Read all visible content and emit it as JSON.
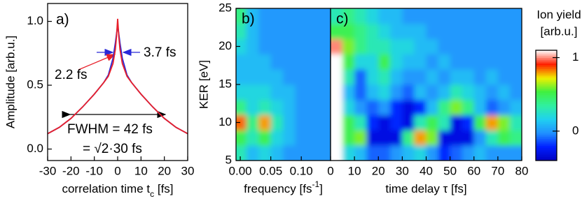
{
  "chart_data": [
    {
      "type": "line",
      "label": "a)",
      "ylabel": "Amplitude [arb.u.]",
      "xlabel": [
        "correlation time t",
        "c",
        " [fs]"
      ],
      "xlim": [
        -30,
        30
      ],
      "ylim": [
        -0.09,
        1.14
      ],
      "xticks": [
        -30,
        -20,
        -10,
        0,
        10,
        20,
        30
      ],
      "yticks": [
        {
          "value": 0,
          "label": "0.0"
        },
        0.5,
        {
          "value": 1,
          "label": "1.0"
        }
      ],
      "x": [
        -30,
        -25,
        -20,
        -15,
        -10,
        -6,
        -4,
        -2,
        -1,
        -0.5,
        0,
        0.5,
        1,
        2,
        4,
        6,
        10,
        15,
        20,
        25,
        30
      ],
      "series": [
        {
          "name": "3.7 fs",
          "color": "#2828d8",
          "values": [
            0.12,
            0.17,
            0.24,
            0.33,
            0.43,
            0.52,
            0.58,
            0.71,
            0.83,
            0.9,
            0.97,
            0.9,
            0.83,
            0.71,
            0.58,
            0.52,
            0.43,
            0.33,
            0.24,
            0.17,
            0.12
          ]
        },
        {
          "name": "2.2 fs",
          "color": "#e8202a",
          "values": [
            0.12,
            0.17,
            0.24,
            0.33,
            0.43,
            0.52,
            0.57,
            0.67,
            0.78,
            0.88,
            1.02,
            0.88,
            0.78,
            0.67,
            0.57,
            0.52,
            0.43,
            0.33,
            0.24,
            0.17,
            0.12
          ]
        }
      ],
      "annotations": [
        "FWHM = 42 fs",
        "= √2·30 fs"
      ]
    },
    {
      "type": "heatmap",
      "label": "b)",
      "ylabel": "KER [eV]",
      "xlabel": [
        "frequency [fs",
        "-1",
        "]"
      ],
      "xlim": [
        -0.007,
        0.148
      ],
      "ylim": [
        5,
        25
      ],
      "xticks": [
        {
          "value": 0,
          "label": "0.00"
        },
        {
          "value": 0.05,
          "label": "0.05"
        },
        {
          "value": 0.1,
          "label": "0.10"
        }
      ],
      "yticks": [
        5,
        10,
        15,
        20,
        25
      ],
      "x": [
        0,
        0.02,
        0.04,
        0.06,
        0.08,
        0.1,
        0.12,
        0.14
      ],
      "y": [
        6,
        8,
        10,
        12,
        14,
        16,
        18,
        20,
        22,
        24
      ],
      "z": [
        [
          0.3,
          0.1,
          0.2,
          0.1,
          0,
          0,
          0,
          0
        ],
        [
          0.5,
          0.3,
          0.5,
          0.2,
          0.1,
          0,
          0,
          0
        ],
        [
          0.85,
          0.4,
          0.8,
          0.3,
          0.1,
          0,
          0,
          0
        ],
        [
          0.4,
          0.2,
          0.3,
          0.2,
          0.1,
          0,
          0,
          0
        ],
        [
          0.2,
          0.2,
          0.2,
          0.1,
          0.1,
          0,
          0,
          0
        ],
        [
          0.1,
          0.1,
          0.1,
          0.1,
          0,
          0,
          0,
          0
        ],
        [
          0.1,
          0.1,
          0.1,
          0,
          0,
          0,
          0,
          0
        ],
        [
          0.2,
          0.1,
          0,
          0,
          0,
          0,
          0,
          0
        ],
        [
          0.3,
          0.1,
          0,
          0,
          0,
          0,
          0,
          0
        ],
        [
          0.4,
          0.1,
          0,
          0,
          0,
          0,
          0,
          0
        ]
      ]
    },
    {
      "type": "heatmap",
      "label": "c)",
      "xlabel": [
        "time delay τ [fs]"
      ],
      "xlim": [
        0,
        80
      ],
      "ylim": [
        5,
        25
      ],
      "xticks": [
        0,
        10,
        20,
        30,
        40,
        50,
        60,
        70,
        80
      ],
      "x": [
        2.5,
        7.5,
        12.5,
        17.5,
        22.5,
        27.5,
        32.5,
        37.5,
        42.5,
        47.5,
        52.5,
        57.5,
        62.5,
        67.5,
        72.5,
        77.5
      ],
      "y": [
        6,
        8,
        10,
        12,
        14,
        16,
        18,
        20,
        22,
        24
      ],
      "z": [
        [
          1.1,
          0.2,
          0.1,
          -0.1,
          -0.1,
          0,
          0.1,
          0.2,
          0,
          -0.2,
          -0.1,
          0,
          0.1,
          0,
          0,
          0
        ],
        [
          1.1,
          0.5,
          0.6,
          -0.3,
          -0.3,
          -0.3,
          0.4,
          0.8,
          0.6,
          -0.3,
          -0.3,
          -0.3,
          0,
          0.3,
          0.5,
          0.4
        ],
        [
          1.1,
          0.5,
          0.3,
          -0.2,
          -0.3,
          -0.2,
          -0.3,
          0.3,
          0.5,
          0.3,
          -0.3,
          -0.2,
          0.5,
          0.8,
          0.6,
          0.3
        ],
        [
          1.1,
          0.2,
          0,
          -0.1,
          0,
          -0.2,
          -0.3,
          -0.2,
          0.1,
          0.4,
          0.6,
          0.4,
          0.1,
          -0.1,
          0,
          0.1
        ],
        [
          1.1,
          0.1,
          -0.1,
          0.1,
          0.2,
          0,
          -0.1,
          0.1,
          0,
          0.1,
          0.3,
          0.2,
          0.1,
          0,
          0.1,
          0
        ],
        [
          1.1,
          0.3,
          -0.1,
          0.2,
          0.3,
          0.1,
          0,
          0,
          0.1,
          0,
          0.1,
          0.1,
          0,
          0.1,
          0,
          0
        ],
        [
          1.1,
          0.5,
          0.2,
          0.2,
          0.5,
          0.2,
          0.1,
          0.1,
          0,
          0.1,
          0,
          0,
          0,
          0,
          0,
          0
        ],
        [
          1,
          0.6,
          0.4,
          0.3,
          0.3,
          0.2,
          0.2,
          0.1,
          0.1,
          0,
          0,
          0,
          0,
          0,
          0,
          0
        ],
        [
          0.5,
          0.5,
          0.4,
          0.3,
          0.2,
          0.1,
          0.1,
          0.1,
          0,
          0,
          0,
          0,
          0,
          0,
          0,
          0
        ],
        [
          0.3,
          0.4,
          0.3,
          0.2,
          0.1,
          0.1,
          0,
          0,
          0,
          0,
          0,
          0,
          0,
          0,
          0,
          0
        ]
      ],
      "colorbar": {
        "title": [
          "Ion yield",
          "[arb.u.]"
        ],
        "clim": [
          -0.4,
          1.1
        ],
        "ticks": [
          0,
          1
        ],
        "colormap": [
          "#0000c0",
          "#0020ff",
          "#2090ff",
          "#20d0f0",
          "#30f0a0",
          "#40f040",
          "#f0f000",
          "#ff2000",
          "#ffffff"
        ]
      }
    }
  ]
}
